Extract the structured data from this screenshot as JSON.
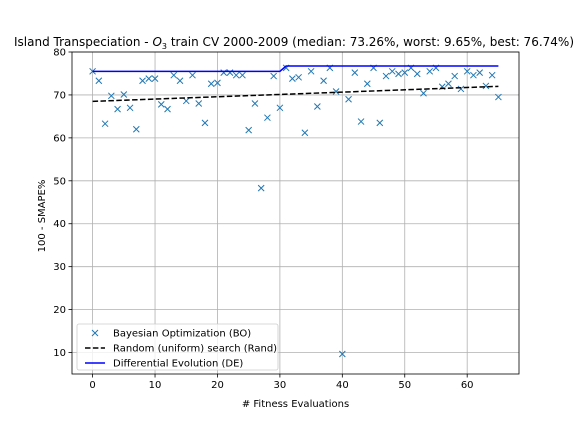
{
  "chart_data": {
    "type": "line",
    "title_prefix": "Island Transpeciation - ",
    "title_sub_base": "O",
    "title_sub_script": "3",
    "title_suffix": " train CV 2000-2009 (median: 73.26%, worst: 9.65%, best: 76.74%)",
    "xlabel": "# Fitness Evaluations",
    "ylabel": "100 - SMAPE%",
    "xlim": [
      -3.3,
      68.3
    ],
    "ylim": [
      5,
      80
    ],
    "xticks": [
      0,
      10,
      20,
      30,
      40,
      50,
      60
    ],
    "yticks": [
      10,
      20,
      30,
      40,
      50,
      60,
      70,
      80
    ],
    "grid": true,
    "legend_position": "lower-left",
    "colors": {
      "bo": "#1f77b4",
      "rand": "#000000",
      "de": "#0000ff",
      "grid": "#b0b0b0"
    },
    "series": [
      {
        "name": "Bayesian Optimization (BO)",
        "style": "markers-x",
        "x": [
          0,
          1,
          2,
          3,
          4,
          5,
          6,
          7,
          8,
          9,
          10,
          11,
          12,
          13,
          14,
          15,
          16,
          17,
          18,
          19,
          20,
          21,
          22,
          23,
          24,
          25,
          26,
          27,
          28,
          29,
          30,
          31,
          32,
          33,
          34,
          35,
          36,
          37,
          38,
          39,
          40,
          41,
          42,
          43,
          44,
          45,
          46,
          47,
          48,
          49,
          50,
          51,
          52,
          53,
          54,
          55,
          56,
          57,
          58,
          59,
          60,
          61,
          62,
          63,
          64,
          65
        ],
        "y": [
          75.5,
          73.3,
          63.3,
          69.8,
          66.7,
          70.1,
          67.0,
          62.0,
          73.3,
          73.8,
          73.8,
          67.8,
          66.7,
          74.6,
          73.3,
          68.6,
          74.6,
          68.0,
          63.5,
          72.6,
          72.8,
          75.2,
          75.2,
          74.6,
          74.6,
          61.8,
          68.0,
          48.3,
          64.7,
          74.4,
          67.0,
          76.3,
          73.8,
          74.1,
          61.2,
          75.5,
          67.3,
          73.3,
          76.3,
          70.8,
          9.65,
          69.0,
          75.2,
          63.8,
          72.6,
          76.3,
          63.5,
          74.4,
          75.5,
          74.9,
          75.2,
          76.3,
          74.9,
          70.4,
          75.5,
          76.3,
          71.9,
          72.6,
          74.4,
          71.4,
          75.5,
          74.6,
          75.2,
          72.1,
          74.6,
          69.5
        ]
      },
      {
        "name": "Random (uniform) search (Rand)",
        "style": "dashed",
        "x": [
          0,
          65
        ],
        "y": [
          68.5,
          72.0
        ]
      },
      {
        "name": "Differential Evolution (DE)",
        "style": "solid",
        "x": [
          0,
          30,
          31,
          65
        ],
        "y": [
          75.5,
          75.5,
          76.74,
          76.74
        ]
      }
    ]
  }
}
